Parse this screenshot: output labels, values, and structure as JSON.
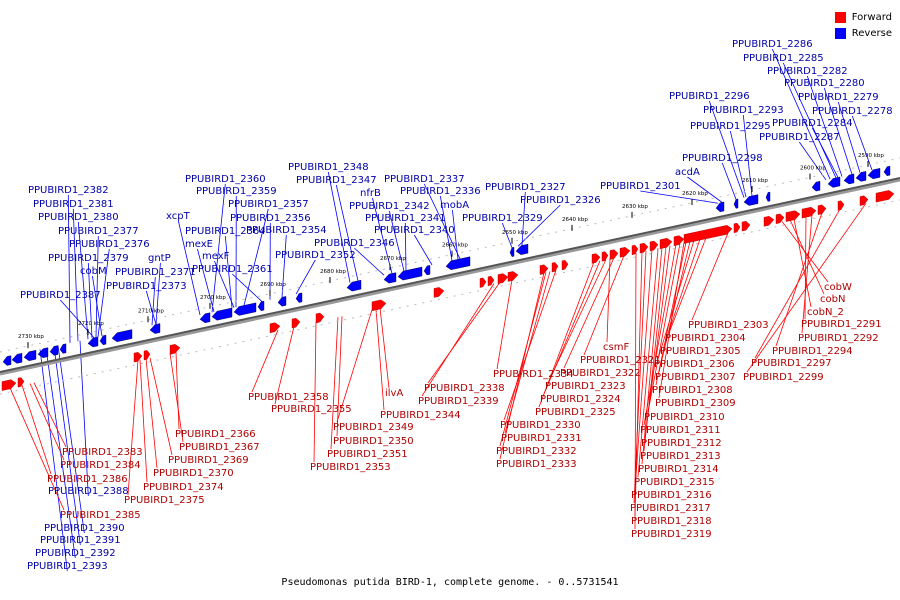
{
  "caption": "Pseudomonas putida BIRD-1, complete genome. - 0..5731541",
  "legend": {
    "forward": {
      "label": "Forward",
      "color": "#ff0000"
    },
    "reverse": {
      "label": "Reverse",
      "color": "#0000ff"
    }
  },
  "colors": {
    "forward": "#ff0000",
    "reverse": "#0000ff",
    "backbone": "#555555"
  },
  "ticks": [
    "2730 kbp",
    "2720 kbp",
    "2710 kbp",
    "2700 kbp",
    "2690 kbp",
    "2680 kbp",
    "2670 kbp",
    "2660 kbp",
    "2650 kbp",
    "2640 kbp",
    "2630 kbp",
    "2620 kbp",
    "2610 kbp",
    "2600 kbp",
    "2590 kbp"
  ],
  "reverse_labels": [
    "PPUBIRD1_2286",
    "PPUBIRD1_2285",
    "PPUBIRD1_2282",
    "PPUBIRD1_2280",
    "PPUBIRD1_2279",
    "PPUBIRD1_2278",
    "PPUBIRD1_2296",
    "PPUBIRD1_2293",
    "PPUBIRD1_2295",
    "PPUBIRD1_2284",
    "PPUBIRD1_2287",
    "PPUBIRD1_2298",
    "acdA",
    "PPUBIRD1_2301",
    "PPUBIRD1_2327",
    "PPUBIRD1_2326",
    "PPUBIRD1_2329",
    "PPUBIRD1_2348",
    "PPUBIRD1_2347",
    "PPUBIRD1_2337",
    "nfrB",
    "PPUBIRD1_2336",
    "PPUBIRD1_2342",
    "mobA",
    "PPUBIRD1_2341",
    "PPUBIRD1_2340",
    "PPUBIRD1_2346",
    "PPUBIRD1_2352",
    "PPUBIRD1_2360",
    "PPUBIRD1_2359",
    "PPUBIRD1_2357",
    "PPUBIRD1_2356",
    "PPUBIRD1_2354",
    "xcpT",
    "PPUBIRD1_2364",
    "mexE",
    "mexF",
    "PPUBIRD1_2361",
    "gntP",
    "PPUBIRD1_2371",
    "PPUBIRD1_2373",
    "PPUBIRD1_2382",
    "PPUBIRD1_2381",
    "PPUBIRD1_2380",
    "PPUBIRD1_2377",
    "PPUBIRD1_2376",
    "PPUBIRD1_2379",
    "cobM",
    "PPUBIRD1_2387",
    "PPUBIRD1_2388",
    "PPUBIRD1_2390",
    "PPUBIRD1_2391",
    "PPUBIRD1_2392",
    "PPUBIRD1_2393"
  ],
  "forward_labels": [
    "cobW",
    "cobN",
    "cobN_2",
    "PPUBIRD1_2291",
    "PPUBIRD1_2292",
    "PPUBIRD1_2294",
    "PPUBIRD1_2297",
    "PPUBIRD1_2299",
    "PPUBIRD1_2303",
    "PPUBIRD1_2304",
    "PPUBIRD1_2305",
    "PPUBIRD1_2306",
    "PPUBIRD1_2307",
    "PPUBIRD1_2308",
    "PPUBIRD1_2309",
    "PPUBIRD1_2310",
    "PPUBIRD1_2311",
    "PPUBIRD1_2312",
    "PPUBIRD1_2313",
    "PPUBIRD1_2314",
    "PPUBIRD1_2315",
    "PPUBIRD1_2316",
    "PPUBIRD1_2317",
    "PPUBIRD1_2318",
    "PPUBIRD1_2319",
    "csmF",
    "PPUBIRD1_2321",
    "PPUBIRD1_2322",
    "PPUBIRD1_2323",
    "PPUBIRD1_2324",
    "PPUBIRD1_2325",
    "PPUBIRD1_2330",
    "PPUBIRD1_2331",
    "PPUBIRD1_2332",
    "PPUBIRD1_2333",
    "PPUBIRD1_2334",
    "PPUBIRD1_2338",
    "PPUBIRD1_2339",
    "ilvA",
    "PPUBIRD1_2344",
    "PPUBIRD1_2349",
    "PPUBIRD1_2350",
    "PPUBIRD1_2351",
    "PPUBIRD1_2353",
    "PPUBIRD1_2355",
    "PPUBIRD1_2358",
    "PPUBIRD1_2366",
    "PPUBIRD1_2367",
    "PPUBIRD1_2369",
    "PPUBIRD1_2370",
    "PPUBIRD1_2374",
    "PPUBIRD1_2375",
    "PPUBIRD1_2383",
    "PPUBIRD1_2384",
    "PPUBIRD1_2386",
    "PPUBIRD1_2385"
  ]
}
